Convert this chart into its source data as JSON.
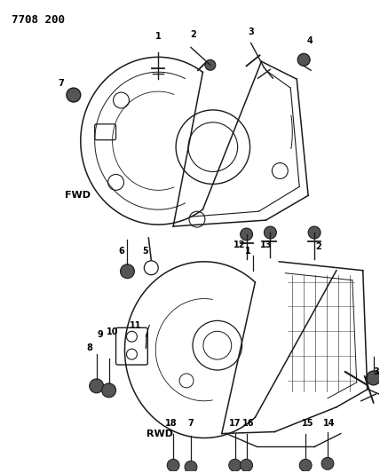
{
  "title": "7708 200",
  "background_color": "#ffffff",
  "line_color": "#1a1a1a",
  "text_color": "#000000",
  "fig_width": 4.28,
  "fig_height": 5.33,
  "dpi": 100,
  "title_fontsize": 9,
  "label_fontsize": 6.5,
  "bold_label_fontsize": 7
}
